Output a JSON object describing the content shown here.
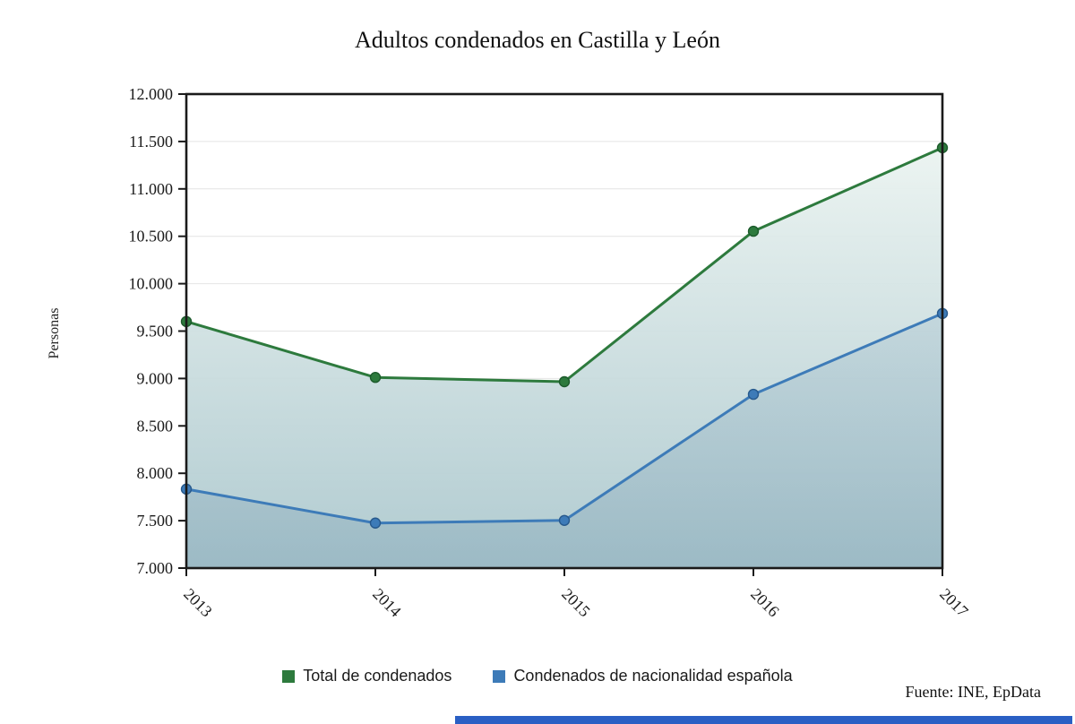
{
  "page": {
    "title": "Adultos condenados en Castilla y León",
    "source": "Fuente: INE, EpData",
    "footer_bar_color": "#2a5fc4"
  },
  "chart_data": {
    "type": "line",
    "title": "Adultos condenados en Castilla y León",
    "ylabel": "Personas",
    "xlabel": "",
    "categories": [
      "2013",
      "2014",
      "2015",
      "2016",
      "2017"
    ],
    "series": [
      {
        "name": "Total de condenados",
        "color": "#2d7a3d",
        "point_stroke": "#1c5a2b",
        "area_top": "rgba(243,249,245,0.95)",
        "area_bottom": "rgba(172,200,206,0.95)",
        "values": [
          9601,
          9011,
          8966,
          10553,
          11434
        ]
      },
      {
        "name": "Condenados de nacionalidad española",
        "color": "#3d7bb8",
        "point_stroke": "#27598c",
        "area_top": "rgba(160,190,212,0.12)",
        "area_bottom": "rgba(124,159,178,0.38)",
        "values": [
          7833,
          7475,
          7503,
          8833,
          9686
        ]
      }
    ],
    "ylim": [
      7000,
      12000
    ],
    "y_tick_step": 500,
    "y_tick_labels": [
      "7.000",
      "7.500",
      "8.000",
      "8.500",
      "9.000",
      "9.500",
      "10.000",
      "10.500",
      "11.000",
      "11.500",
      "12.000"
    ],
    "grid": true,
    "legend_position": "bottom"
  }
}
